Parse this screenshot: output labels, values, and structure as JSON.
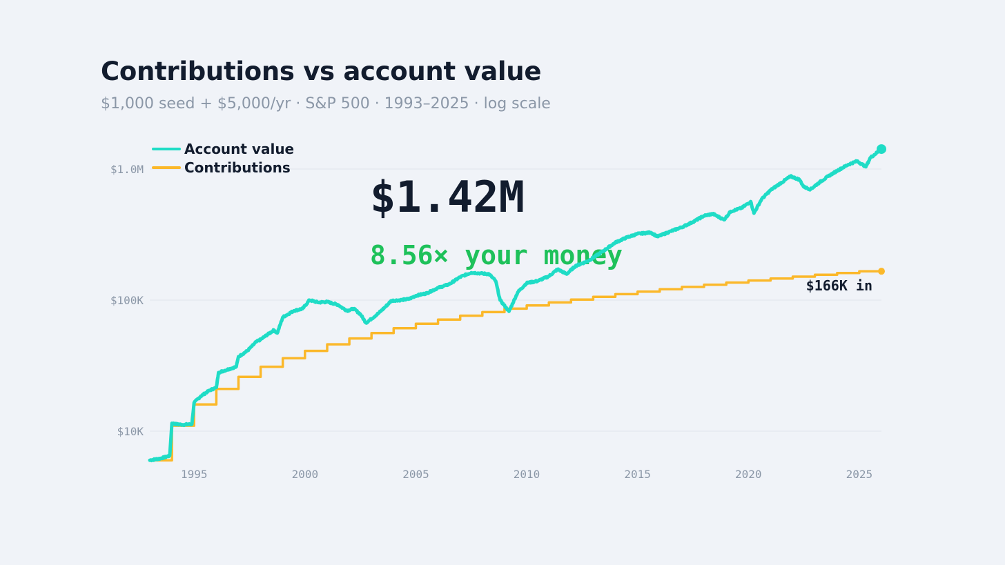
{
  "chart_data": {
    "type": "line",
    "title": "Contributions vs account value",
    "subtitle": "$1,000 seed + $5,000/yr · S&P 500 · 1993–2025 · log scale",
    "x_range": [
      1993.0,
      2026.0
    ],
    "y_range": [
      5000,
      1500000
    ],
    "y_scale": "log",
    "y_ticks": [
      {
        "value": 10000,
        "label": "$10K"
      },
      {
        "value": 100000,
        "label": "$100K"
      },
      {
        "value": 1000000,
        "label": "$1.0M"
      }
    ],
    "x_ticks": [
      {
        "value": 1995,
        "label": "1995"
      },
      {
        "value": 2000,
        "label": "2000"
      },
      {
        "value": 2005,
        "label": "2005"
      },
      {
        "value": 2010,
        "label": "2010"
      },
      {
        "value": 2015,
        "label": "2015"
      },
      {
        "value": 2020,
        "label": "2020"
      },
      {
        "value": 2025,
        "label": "2025"
      }
    ],
    "grid": "horizontal",
    "legend_position": "top-left",
    "series": [
      {
        "name": "Account value",
        "color": "#1fdcc6",
        "points": [
          [
            1993.0,
            6000
          ],
          [
            1993.5,
            6200
          ],
          [
            1993.9,
            6500
          ],
          [
            1994.0,
            11500
          ],
          [
            1994.2,
            11300
          ],
          [
            1994.5,
            11200
          ],
          [
            1994.9,
            11300
          ],
          [
            1995.0,
            16500
          ],
          [
            1995.3,
            18500
          ],
          [
            1995.7,
            20500
          ],
          [
            1996.0,
            21500
          ],
          [
            1996.1,
            28000
          ],
          [
            1996.5,
            29500
          ],
          [
            1996.9,
            31000
          ],
          [
            1997.0,
            37000
          ],
          [
            1997.4,
            41000
          ],
          [
            1997.8,
            48000
          ],
          [
            1998.0,
            50000
          ],
          [
            1998.2,
            53000
          ],
          [
            1998.6,
            59000
          ],
          [
            1998.75,
            56000
          ],
          [
            1999.0,
            74000
          ],
          [
            1999.5,
            83000
          ],
          [
            1999.9,
            86000
          ],
          [
            2000.2,
            100000
          ],
          [
            2000.6,
            96000
          ],
          [
            2001.0,
            97000
          ],
          [
            2001.5,
            92000
          ],
          [
            2001.7,
            87000
          ],
          [
            2001.9,
            83000
          ],
          [
            2002.2,
            86000
          ],
          [
            2002.5,
            78000
          ],
          [
            2002.75,
            67000
          ],
          [
            2003.0,
            72000
          ],
          [
            2003.3,
            79000
          ],
          [
            2003.6,
            88000
          ],
          [
            2003.9,
            99000
          ],
          [
            2004.3,
            100000
          ],
          [
            2004.7,
            102000
          ],
          [
            2005.0,
            108000
          ],
          [
            2005.5,
            113000
          ],
          [
            2006.0,
            124000
          ],
          [
            2006.5,
            132000
          ],
          [
            2007.0,
            150000
          ],
          [
            2007.5,
            162000
          ],
          [
            2007.9,
            160000
          ],
          [
            2008.3,
            158000
          ],
          [
            2008.6,
            140000
          ],
          [
            2008.8,
            100000
          ],
          [
            2009.2,
            82000
          ],
          [
            2009.6,
            115000
          ],
          [
            2010.0,
            135000
          ],
          [
            2010.5,
            140000
          ],
          [
            2011.0,
            152000
          ],
          [
            2011.4,
            172000
          ],
          [
            2011.8,
            158000
          ],
          [
            2012.2,
            182000
          ],
          [
            2012.8,
            200000
          ],
          [
            2013.5,
            240000
          ],
          [
            2014.0,
            275000
          ],
          [
            2014.5,
            300000
          ],
          [
            2015.0,
            320000
          ],
          [
            2015.6,
            328000
          ],
          [
            2015.9,
            305000
          ],
          [
            2016.5,
            335000
          ],
          [
            2017.0,
            360000
          ],
          [
            2017.5,
            395000
          ],
          [
            2018.0,
            440000
          ],
          [
            2018.4,
            455000
          ],
          [
            2018.9,
            410000
          ],
          [
            2019.2,
            475000
          ],
          [
            2019.7,
            505000
          ],
          [
            2020.1,
            565000
          ],
          [
            2020.25,
            460000
          ],
          [
            2020.6,
            590000
          ],
          [
            2021.0,
            690000
          ],
          [
            2021.5,
            790000
          ],
          [
            2021.9,
            880000
          ],
          [
            2022.3,
            830000
          ],
          [
            2022.5,
            730000
          ],
          [
            2022.8,
            700000
          ],
          [
            2023.2,
            790000
          ],
          [
            2023.6,
            880000
          ],
          [
            2024.0,
            970000
          ],
          [
            2024.5,
            1080000
          ],
          [
            2024.9,
            1150000
          ],
          [
            2025.3,
            1040000
          ],
          [
            2025.5,
            1220000
          ],
          [
            2026.0,
            1420000
          ]
        ],
        "end_label": ""
      },
      {
        "name": "Contributions",
        "color": "#fbb82a",
        "start": {
          "year": 1993.0,
          "value": 6000
        },
        "annual_step": 5000,
        "step_years": [
          1994,
          1995,
          1996,
          1997,
          1998,
          1999,
          2000,
          2001,
          2002,
          2003,
          2004,
          2005,
          2006,
          2007,
          2008,
          2009,
          2010,
          2011,
          2012,
          2013,
          2014,
          2015,
          2016,
          2017,
          2018,
          2019,
          2020,
          2021,
          2022,
          2023,
          2024,
          2025
        ],
        "end_value": 166000,
        "end_label": "$166K in"
      }
    ],
    "annotations": {
      "big_value": "$1.42M",
      "multiple": "8.56× your money"
    }
  }
}
